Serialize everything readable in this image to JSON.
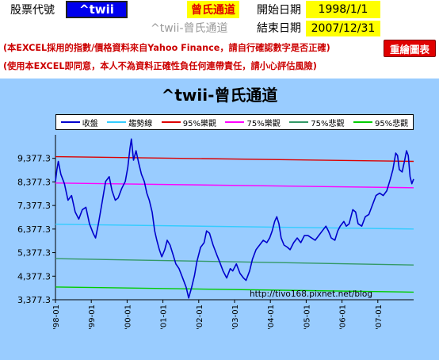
{
  "header": {
    "stock_code_label": "股票代號",
    "ticker": "^twii",
    "indicator": "曾氏通道",
    "start_label": "開始日期",
    "start_date": "1998/1/1",
    "end_label": "結束日期",
    "end_date": "2007/12/31",
    "subtitle_ghost": "^twii-曾氏通道"
  },
  "notes": {
    "line1": "(本EXCEL採用的指數/價格資料來自Yahoo Finance，請自行確認數字是否正確)",
    "line2": "(使用本EXCEL即同意，本人不為資料正確性負任何連帶責任，請小心評估風險)"
  },
  "toolbar": {
    "redraw_label": "重繪圖表"
  },
  "colors": {
    "panel_bg": "#99ccff",
    "price": "#0000cc",
    "trend": "#33ccff",
    "bull95": "#dd0000",
    "bull75": "#ff00ff",
    "bear75": "#339966",
    "bear95": "#00cc00"
  },
  "chart_data": {
    "type": "line",
    "title": "^twii-曾氏通道",
    "watermark": "http://tivo168.pixnet.net/blog",
    "ylim": [
      3377.3,
      10377.3
    ],
    "y_ticks": [
      "3,377.3",
      "4,377.3",
      "5,377.3",
      "6,377.3",
      "7,377.3",
      "8,377.3",
      "9,377.3"
    ],
    "y_tick_values": [
      3377.3,
      4377.3,
      5377.3,
      6377.3,
      7377.3,
      8377.3,
      9377.3
    ],
    "x_ticks": [
      "'98-01",
      "'99-01",
      "'00-01",
      "'01-01",
      "'02-01",
      "'03-01",
      "'04-01",
      "'05-01",
      "'06-01",
      "'07-01"
    ],
    "x_tick_values": [
      1998,
      1999,
      2000,
      2001,
      2002,
      2003,
      2004,
      2005,
      2006,
      2007
    ],
    "x_range": [
      1998,
      2008
    ],
    "series": [
      {
        "name": "收盤",
        "color": "#0000cc",
        "type": "price",
        "points": [
          [
            1998.0,
            8400
          ],
          [
            1998.04,
            8900
          ],
          [
            1998.08,
            9250
          ],
          [
            1998.15,
            8700
          ],
          [
            1998.25,
            8300
          ],
          [
            1998.35,
            7600
          ],
          [
            1998.45,
            7800
          ],
          [
            1998.55,
            7100
          ],
          [
            1998.65,
            6800
          ],
          [
            1998.75,
            7200
          ],
          [
            1998.85,
            7300
          ],
          [
            1998.95,
            6600
          ],
          [
            1999.05,
            6200
          ],
          [
            1999.12,
            6000
          ],
          [
            1999.2,
            6600
          ],
          [
            1999.3,
            7500
          ],
          [
            1999.4,
            8400
          ],
          [
            1999.5,
            8600
          ],
          [
            1999.58,
            8000
          ],
          [
            1999.67,
            7600
          ],
          [
            1999.75,
            7700
          ],
          [
            1999.85,
            8100
          ],
          [
            1999.95,
            8400
          ],
          [
            2000.02,
            9000
          ],
          [
            2000.08,
            9800
          ],
          [
            2000.12,
            10200
          ],
          [
            2000.18,
            9300
          ],
          [
            2000.25,
            9700
          ],
          [
            2000.32,
            9200
          ],
          [
            2000.4,
            8700
          ],
          [
            2000.48,
            8400
          ],
          [
            2000.55,
            7900
          ],
          [
            2000.62,
            7600
          ],
          [
            2000.7,
            7100
          ],
          [
            2000.77,
            6300
          ],
          [
            2000.83,
            5900
          ],
          [
            2000.9,
            5500
          ],
          [
            2000.97,
            5200
          ],
          [
            2001.05,
            5500
          ],
          [
            2001.12,
            5900
          ],
          [
            2001.2,
            5700
          ],
          [
            2001.28,
            5300
          ],
          [
            2001.36,
            4900
          ],
          [
            2001.45,
            4700
          ],
          [
            2001.55,
            4300
          ],
          [
            2001.65,
            3900
          ],
          [
            2001.72,
            3450
          ],
          [
            2001.8,
            3900
          ],
          [
            2001.88,
            4400
          ],
          [
            2001.95,
            5000
          ],
          [
            2002.05,
            5600
          ],
          [
            2002.15,
            5800
          ],
          [
            2002.22,
            6300
          ],
          [
            2002.3,
            6200
          ],
          [
            2002.4,
            5700
          ],
          [
            2002.5,
            5300
          ],
          [
            2002.58,
            5000
          ],
          [
            2002.68,
            4600
          ],
          [
            2002.78,
            4300
          ],
          [
            2002.88,
            4700
          ],
          [
            2002.95,
            4600
          ],
          [
            2003.05,
            4900
          ],
          [
            2003.15,
            4500
          ],
          [
            2003.25,
            4300
          ],
          [
            2003.32,
            4200
          ],
          [
            2003.42,
            4600
          ],
          [
            2003.5,
            5100
          ],
          [
            2003.6,
            5500
          ],
          [
            2003.7,
            5700
          ],
          [
            2003.8,
            5900
          ],
          [
            2003.9,
            5800
          ],
          [
            2003.98,
            6000
          ],
          [
            2004.05,
            6300
          ],
          [
            2004.12,
            6700
          ],
          [
            2004.18,
            6900
          ],
          [
            2004.24,
            6600
          ],
          [
            2004.3,
            6000
          ],
          [
            2004.38,
            5700
          ],
          [
            2004.48,
            5600
          ],
          [
            2004.55,
            5500
          ],
          [
            2004.65,
            5800
          ],
          [
            2004.75,
            6000
          ],
          [
            2004.85,
            5800
          ],
          [
            2004.95,
            6100
          ],
          [
            2005.05,
            6100
          ],
          [
            2005.15,
            6000
          ],
          [
            2005.25,
            5900
          ],
          [
            2005.35,
            6100
          ],
          [
            2005.45,
            6300
          ],
          [
            2005.55,
            6500
          ],
          [
            2005.62,
            6300
          ],
          [
            2005.7,
            6000
          ],
          [
            2005.8,
            5900
          ],
          [
            2005.88,
            6300
          ],
          [
            2005.95,
            6500
          ],
          [
            2006.05,
            6700
          ],
          [
            2006.12,
            6500
          ],
          [
            2006.2,
            6600
          ],
          [
            2006.3,
            7200
          ],
          [
            2006.38,
            7100
          ],
          [
            2006.45,
            6600
          ],
          [
            2006.55,
            6500
          ],
          [
            2006.65,
            6900
          ],
          [
            2006.75,
            7000
          ],
          [
            2006.85,
            7400
          ],
          [
            2006.95,
            7800
          ],
          [
            2007.05,
            7900
          ],
          [
            2007.15,
            7800
          ],
          [
            2007.25,
            8000
          ],
          [
            2007.35,
            8500
          ],
          [
            2007.42,
            8900
          ],
          [
            2007.5,
            9600
          ],
          [
            2007.55,
            9500
          ],
          [
            2007.6,
            8900
          ],
          [
            2007.68,
            8800
          ],
          [
            2007.75,
            9300
          ],
          [
            2007.8,
            9700
          ],
          [
            2007.85,
            9500
          ],
          [
            2007.9,
            8600
          ],
          [
            2007.95,
            8300
          ],
          [
            2008.0,
            8500
          ]
        ]
      },
      {
        "name": "趨勢線",
        "color": "#33ccff",
        "type": "line",
        "points": [
          [
            1998.0,
            6580
          ],
          [
            2008.0,
            6380
          ]
        ]
      },
      {
        "name": "95%樂觀",
        "color": "#dd0000",
        "type": "line",
        "points": [
          [
            1998.0,
            9450
          ],
          [
            2008.0,
            9250
          ]
        ]
      },
      {
        "name": "75%樂觀",
        "color": "#ff00ff",
        "type": "line",
        "points": [
          [
            1998.0,
            8330
          ],
          [
            2008.0,
            8130
          ]
        ]
      },
      {
        "name": "75%悲觀",
        "color": "#339966",
        "type": "line",
        "points": [
          [
            1998.0,
            5120
          ],
          [
            2008.0,
            4850
          ]
        ]
      },
      {
        "name": "95%悲觀",
        "color": "#00cc00",
        "type": "line",
        "points": [
          [
            1998.0,
            3920
          ],
          [
            2008.0,
            3700
          ]
        ]
      }
    ]
  }
}
